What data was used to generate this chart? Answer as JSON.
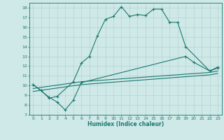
{
  "xlabel": "Humidex (Indice chaleur)",
  "xlim": [
    -0.5,
    23.5
  ],
  "ylim": [
    7,
    18.5
  ],
  "yticks": [
    7,
    8,
    9,
    10,
    11,
    12,
    13,
    14,
    15,
    16,
    17,
    18
  ],
  "xticks": [
    0,
    1,
    2,
    3,
    4,
    5,
    6,
    7,
    8,
    9,
    10,
    11,
    12,
    13,
    14,
    15,
    16,
    17,
    18,
    19,
    20,
    21,
    22,
    23
  ],
  "line_color": "#1a7a6e",
  "bg_color": "#cfe8e8",
  "grid_color": "#aecece",
  "series1_x": [
    0,
    1,
    2,
    3,
    5,
    6,
    7,
    8,
    9,
    10,
    11,
    12,
    13,
    14,
    15,
    16,
    17,
    18,
    19,
    22,
    23
  ],
  "series1_y": [
    10.1,
    9.5,
    8.7,
    8.9,
    10.4,
    12.3,
    13.0,
    15.1,
    16.8,
    17.1,
    18.1,
    17.1,
    17.3,
    17.2,
    17.85,
    17.85,
    16.5,
    16.5,
    14.0,
    11.5,
    11.8
  ],
  "series2_x": [
    0,
    2,
    3,
    4,
    5,
    6,
    19,
    20,
    22,
    23
  ],
  "series2_y": [
    10.1,
    8.8,
    8.3,
    7.5,
    8.5,
    10.3,
    13.0,
    12.4,
    11.5,
    11.9
  ],
  "series3_x": [
    0,
    6,
    22,
    23
  ],
  "series3_y": [
    9.7,
    10.4,
    11.35,
    11.5
  ],
  "series4_x": [
    0,
    6,
    22,
    23
  ],
  "series4_y": [
    9.4,
    10.1,
    11.1,
    11.25
  ]
}
